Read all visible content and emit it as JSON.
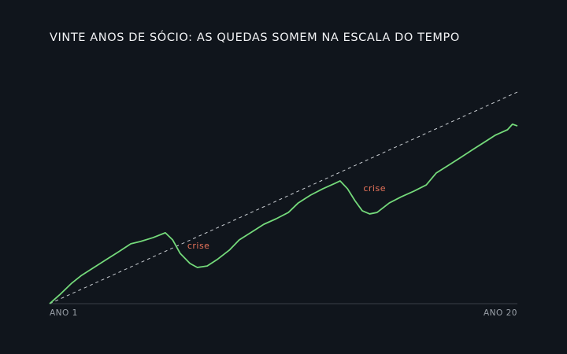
{
  "chart_data": {
    "type": "line",
    "title": "VINTE ANOS DE SÓCIO: AS QUEDAS SOMEM NA ESCALA DO TEMPO",
    "xlim": [
      1,
      20
    ],
    "xticks": [
      {
        "value": 1,
        "label": "ANO 1"
      },
      {
        "value": 20,
        "label": "ANO 20"
      }
    ],
    "ylim": [
      0,
      100
    ],
    "grid": false,
    "series": [
      {
        "color": "#c9cdd2",
        "dashed": true,
        "x": [
          1,
          20
        ],
        "values": [
          0,
          100
        ]
      },
      {
        "color": "#74d97a",
        "dashed": false,
        "x": [
          1.0,
          1.4,
          1.9,
          2.3,
          2.8,
          3.3,
          3.8,
          4.3,
          4.7,
          5.2,
          5.7,
          6.0,
          6.3,
          6.7,
          7.0,
          7.4,
          7.8,
          8.3,
          8.7,
          9.2,
          9.7,
          10.2,
          10.7,
          11.1,
          11.6,
          12.1,
          12.6,
          12.8,
          13.1,
          13.4,
          13.7,
          14.0,
          14.3,
          14.8,
          15.3,
          15.8,
          16.3,
          16.7,
          17.2,
          17.7,
          18.2,
          18.7,
          19.1,
          19.6,
          19.8,
          20.0
        ],
        "values": [
          0,
          4.1,
          9.7,
          13.4,
          17.1,
          20.8,
          24.5,
          28.3,
          29.4,
          31.2,
          33.5,
          30.1,
          23.8,
          19.0,
          17.1,
          17.8,
          20.8,
          25.3,
          30.1,
          33.8,
          37.5,
          40.1,
          43.1,
          47.6,
          51.3,
          54.3,
          56.9,
          58.0,
          54.3,
          48.7,
          43.9,
          42.4,
          43.1,
          47.6,
          50.6,
          53.2,
          56.1,
          61.7,
          65.4,
          69.1,
          72.9,
          76.6,
          79.6,
          82.2,
          84.8,
          84.0
        ]
      }
    ],
    "annotations": [
      {
        "text": "crise",
        "color": "#e8735a",
        "x": 7.05,
        "y": 27.1
      },
      {
        "text": "crise",
        "color": "#e8735a",
        "x": 14.2,
        "y": 54.3
      }
    ]
  }
}
